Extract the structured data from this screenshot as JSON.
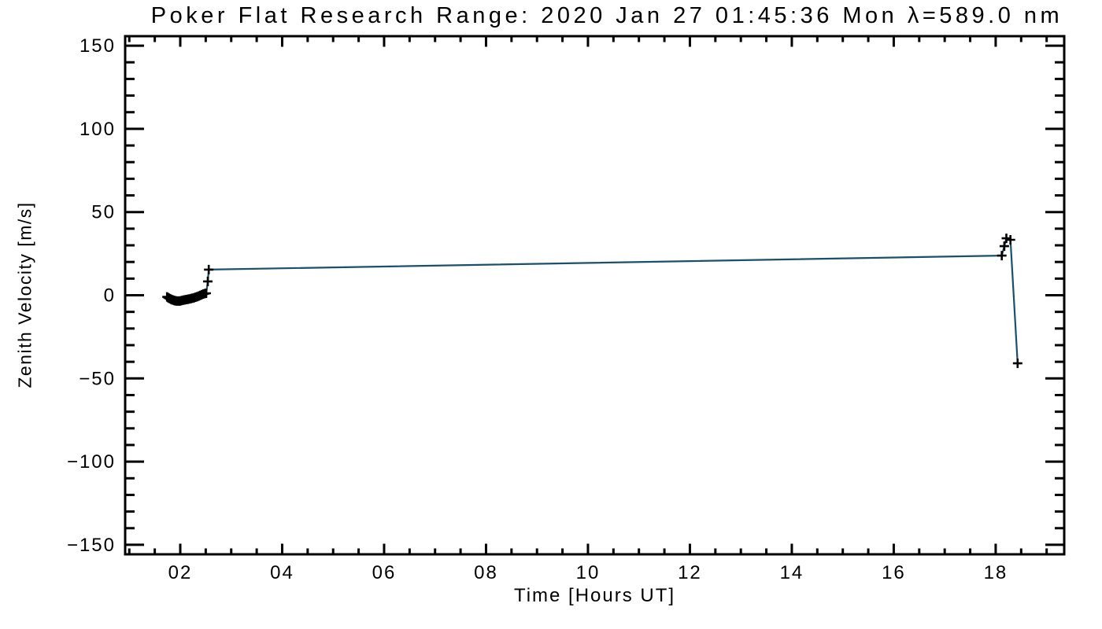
{
  "chart_data": {
    "type": "line",
    "title": "Poker Flat Research Range: 2020 Jan 27 01:45:36 Mon λ=589.0 nm",
    "xlabel": "Time [Hours UT]",
    "ylabel": "Zenith Velocity [m/s]",
    "xlim": [
      0.919,
      19.345
    ],
    "ylim": [
      -155.7,
      155.7
    ],
    "grid": false,
    "legend": "none",
    "background_color": "#ffffff",
    "axis_color": "#000000",
    "line_color": "#1a506a",
    "marker": "+",
    "marker_color": "#000000",
    "x_ticks": {
      "values": [
        2,
        4,
        6,
        8,
        10,
        12,
        14,
        16,
        18
      ],
      "labels": [
        "02",
        "04",
        "06",
        "08",
        "10",
        "12",
        "14",
        "16",
        "18"
      ],
      "minor_step": 0.5
    },
    "y_ticks": {
      "values": [
        150,
        100,
        50,
        0,
        -50,
        -100,
        -150
      ],
      "labels": [
        "150",
        "100",
        "50",
        "0",
        "−50",
        "−100",
        "−150"
      ],
      "minor_step": 10
    },
    "series": [
      {
        "name": "zenith velocity",
        "points": [
          [
            1.74,
            -1.0
          ],
          [
            1.76,
            -1.4
          ],
          [
            1.78,
            -1.8
          ],
          [
            1.8,
            -2.1
          ],
          [
            1.82,
            -2.4
          ],
          [
            1.84,
            -2.7
          ],
          [
            1.86,
            -2.9
          ],
          [
            1.88,
            -3.1
          ],
          [
            1.9,
            -3.3
          ],
          [
            1.92,
            -3.4
          ],
          [
            1.94,
            -3.5
          ],
          [
            1.96,
            -3.5
          ],
          [
            1.98,
            -3.5
          ],
          [
            2.0,
            -3.4
          ],
          [
            2.03,
            -3.2
          ],
          [
            2.06,
            -3.0
          ],
          [
            2.09,
            -2.8
          ],
          [
            2.12,
            -2.6
          ],
          [
            2.15,
            -2.4
          ],
          [
            2.18,
            -2.2
          ],
          [
            2.21,
            -2.0
          ],
          [
            2.24,
            -1.8
          ],
          [
            2.27,
            -1.5
          ],
          [
            2.3,
            -1.2
          ],
          [
            2.33,
            -0.9
          ],
          [
            2.36,
            -0.5
          ],
          [
            2.39,
            -0.1
          ],
          [
            2.42,
            0.3
          ],
          [
            2.45,
            0.7
          ],
          [
            2.48,
            1.0
          ],
          [
            2.51,
            1.2
          ],
          [
            2.54,
            8.3
          ],
          [
            2.56,
            15.4
          ],
          [
            18.12,
            23.8
          ],
          [
            18.17,
            29.5
          ],
          [
            18.21,
            34.2
          ],
          [
            18.29,
            33.3
          ],
          [
            18.43,
            -40.9
          ]
        ]
      }
    ]
  }
}
